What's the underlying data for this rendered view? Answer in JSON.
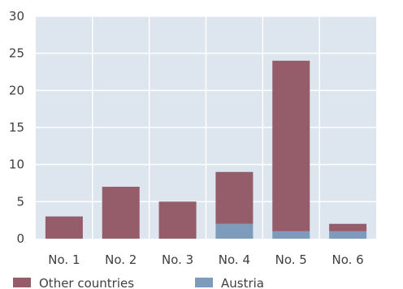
{
  "chart_data": {
    "type": "bar",
    "stacked": true,
    "categories": [
      "No. 1",
      "No. 2",
      "No. 3",
      "No. 4",
      "No. 5",
      "No. 6"
    ],
    "series": [
      {
        "name": "Austria",
        "values": [
          0,
          0,
          0,
          2,
          1,
          1
        ],
        "color": "#7d9bbb"
      },
      {
        "name": "Other countries",
        "values": [
          3,
          7,
          5,
          7,
          23,
          1
        ],
        "color": "#955d69"
      }
    ],
    "legend_order": [
      "Other countries",
      "Austria"
    ],
    "y_ticks": [
      "0",
      "5",
      "10",
      "15",
      "20",
      "25",
      "30"
    ],
    "ylim": [
      0,
      30
    ],
    "grid": true,
    "legend_position": "bottom-left",
    "plot_background": "#dde5ee",
    "grid_color": "#ffffff"
  }
}
